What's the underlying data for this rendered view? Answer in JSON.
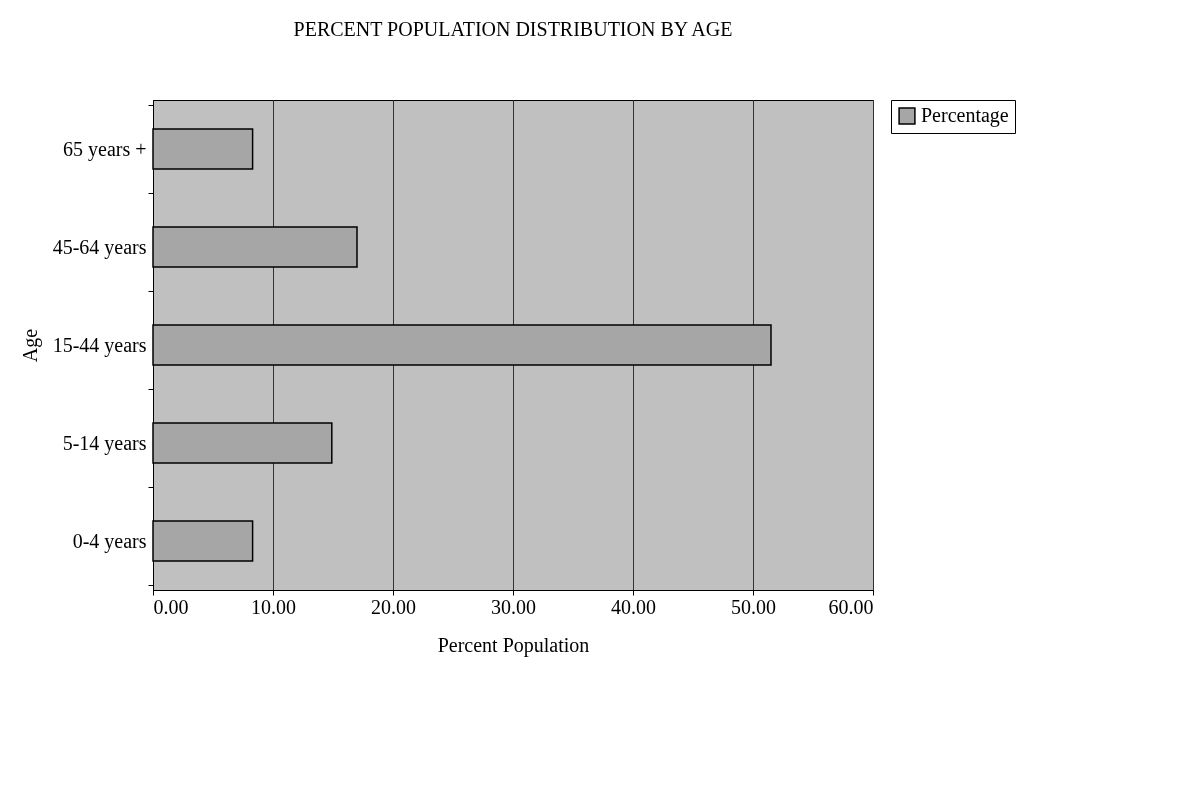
{
  "chart_data": {
    "type": "bar",
    "orientation": "horizontal",
    "title": "PERCENT POPULATION DISTRIBUTION BY AGE",
    "xlabel": "Percent Population",
    "ylabel": "Age",
    "categories": [
      "65 years +",
      "45-64 years",
      "15-44 years",
      "5-14 years",
      "0-4 years"
    ],
    "series": [
      {
        "name": "Percentage",
        "color": "#a6a6a6",
        "values": [
          8.3,
          17.0,
          51.5,
          14.9,
          8.3
        ]
      }
    ],
    "xlim": [
      0,
      60
    ],
    "xticks": [
      {
        "value": 0,
        "label": "0.00"
      },
      {
        "value": 10,
        "label": "10.00"
      },
      {
        "value": 20,
        "label": "20.00"
      },
      {
        "value": 30,
        "label": "30.00"
      },
      {
        "value": 40,
        "label": "40.00"
      },
      {
        "value": 50,
        "label": "50.00"
      },
      {
        "value": 60,
        "label": "60.00"
      }
    ],
    "grid": "x",
    "legend": "right"
  }
}
